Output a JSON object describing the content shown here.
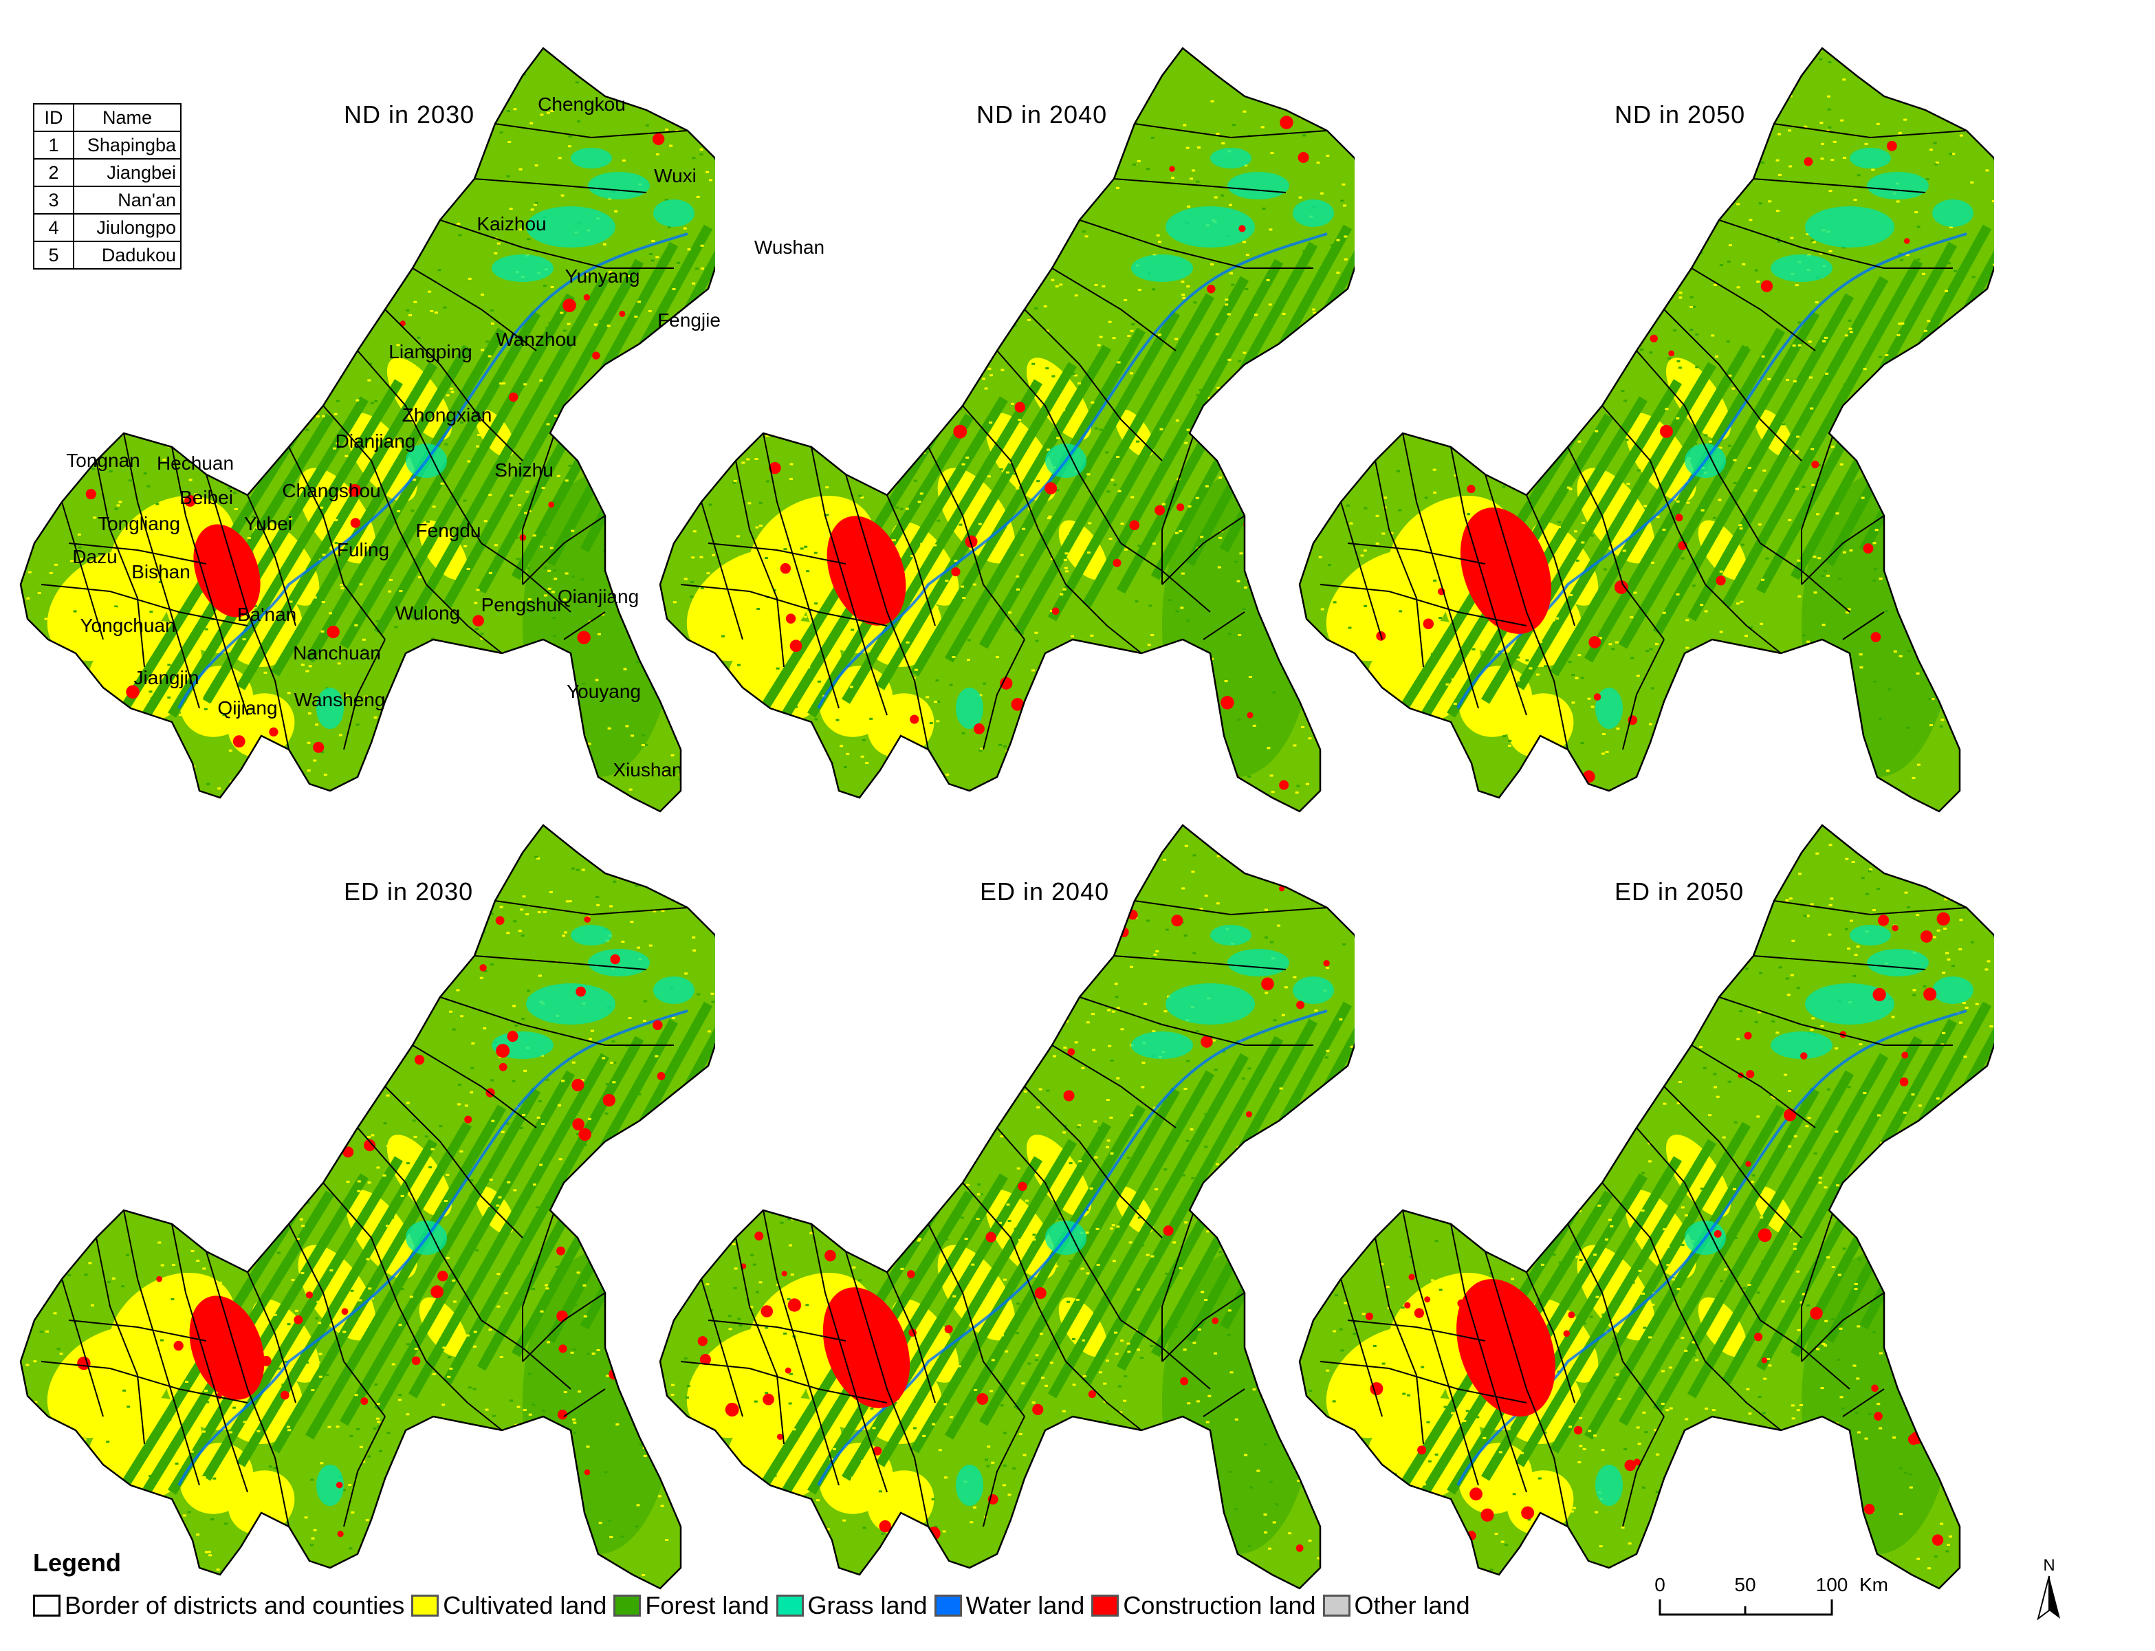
{
  "panels": [
    {
      "title": "ND in 2030"
    },
    {
      "title": "ND in 2040"
    },
    {
      "title": "ND in 2050"
    },
    {
      "title": "ED in 2030"
    },
    {
      "title": "ED in 2040"
    },
    {
      "title": "ED in 2050"
    }
  ],
  "id_table": {
    "headers": [
      "ID",
      "Name"
    ],
    "rows": [
      [
        "1",
        "Shapingba"
      ],
      [
        "2",
        "Jiangbei"
      ],
      [
        "3",
        "Nan'an"
      ],
      [
        "4",
        "Jiulongpo"
      ],
      [
        "5",
        "Dadukou"
      ]
    ]
  },
  "place_labels": [
    "Chengkou",
    "Wuxi",
    "Kaizhou",
    "Wushan",
    "Yunyang",
    "Fengjie",
    "Wanzhou",
    "Liangping",
    "Zhongxian",
    "Dianjiang",
    "Tongnan",
    "Hechuan",
    "Shizhu",
    "Changshou",
    "Beibei",
    "Tongliang",
    "Yubei",
    "Fengdu",
    "Dazu",
    "Bishan",
    "Fuling",
    "Qianjiang",
    "Pengshui",
    "Ba'nan",
    "Wulong",
    "Yongchuan",
    "Nanchuan",
    "Jiangjin",
    "Youyang",
    "Qijiang",
    "Wansheng",
    "Xiushan"
  ],
  "legend": {
    "title": "Legend",
    "items": [
      {
        "label": "Border of districts and counties",
        "color": "#ffffff"
      },
      {
        "label": "Cultivated land",
        "color": "#ffff00"
      },
      {
        "label": "Forest land",
        "color": "#38a800"
      },
      {
        "label": "Grass land",
        "color": "#00e6a9"
      },
      {
        "label": "Water land",
        "color": "#0070ff"
      },
      {
        "label": "Construction land",
        "color": "#ff0000"
      },
      {
        "label": "Other land",
        "color": "#cccccc"
      }
    ]
  },
  "scale_bar": {
    "ticks": [
      "0",
      "50",
      "100"
    ],
    "unit": "Km"
  },
  "north_arrow": {
    "label": "N"
  },
  "colors": {
    "cultivated": "#ffff00",
    "forest": "#38a800",
    "forest_light": "#70c400",
    "grass": "#00e6a9",
    "water": "#0070ff",
    "construction": "#ff0000",
    "border": "#000000"
  }
}
